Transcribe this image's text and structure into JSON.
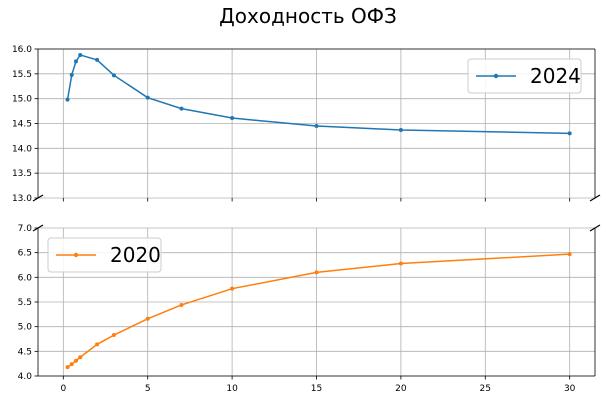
{
  "chart_data": {
    "type": "line",
    "title": "Доходность ОФЗ",
    "xlabel": "",
    "ylabel": "",
    "grid": true,
    "broken_y_axis": true,
    "xlim": [
      -1.5,
      31.5
    ],
    "x_ticks": [
      0,
      5,
      10,
      15,
      20,
      25,
      30
    ],
    "panels": [
      {
        "ylim": [
          13.0,
          16.0
        ],
        "y_ticks": [
          13.0,
          13.5,
          14.0,
          14.5,
          15.0,
          15.5,
          16.0
        ],
        "legend_position": "upper-right",
        "series": [
          {
            "name": "2024",
            "color": "#1f77b4",
            "x": [
              0.25,
              0.5,
              0.75,
              1,
              2,
              3,
              5,
              7,
              10,
              15,
              20,
              30
            ],
            "y": [
              14.98,
              15.48,
              15.75,
              15.88,
              15.78,
              15.47,
              15.02,
              14.8,
              14.61,
              14.45,
              14.37,
              14.3
            ]
          }
        ]
      },
      {
        "ylim": [
          4.0,
          7.0
        ],
        "y_ticks": [
          4.0,
          4.5,
          5.0,
          5.5,
          6.0,
          6.5,
          7.0
        ],
        "legend_position": "upper-left",
        "series": [
          {
            "name": "2020",
            "color": "#ff7f0e",
            "x": [
              0.25,
              0.5,
              0.75,
              1,
              2,
              3,
              5,
              7,
              10,
              15,
              20,
              30
            ],
            "y": [
              4.18,
              4.24,
              4.31,
              4.38,
              4.64,
              4.83,
              5.16,
              5.44,
              5.77,
              6.1,
              6.28,
              6.47
            ]
          }
        ]
      }
    ]
  }
}
